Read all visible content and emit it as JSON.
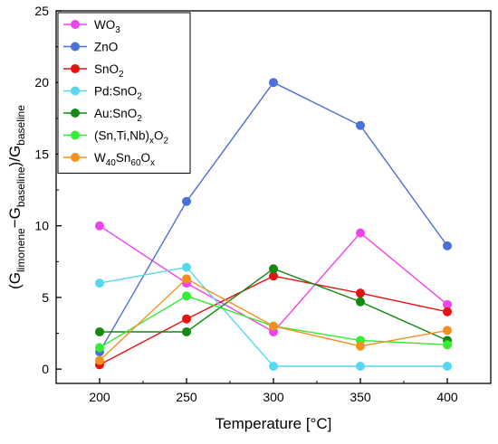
{
  "chart_data": {
    "type": "line",
    "xlabel": "Temperature [°C]",
    "ylabel_parts": {
      "open": "(G",
      "sub1": "limonene",
      "minus": "−G",
      "sub2": "baseline",
      "close": ")/G",
      "sub3": "baseline"
    },
    "x": [
      200,
      250,
      300,
      350,
      400
    ],
    "xlim": [
      175,
      425
    ],
    "ylim": [
      -1,
      25
    ],
    "xticks": [
      200,
      250,
      300,
      350,
      400
    ],
    "yticks": [
      0,
      5,
      10,
      15,
      20,
      25
    ],
    "grid": false,
    "legend_position": "top-left",
    "series": [
      {
        "name": "WO3",
        "label_parts": [
          {
            "t": "WO"
          },
          {
            "t": "3",
            "sub": true
          }
        ],
        "color": "#ee44ee",
        "values": [
          10.0,
          6.0,
          2.6,
          9.5,
          4.5
        ]
      },
      {
        "name": "ZnO",
        "label_parts": [
          {
            "t": "ZnO"
          }
        ],
        "color": "#4a70d9",
        "values": [
          1.2,
          11.7,
          20.0,
          17.0,
          8.6
        ]
      },
      {
        "name": "SnO2",
        "label_parts": [
          {
            "t": "SnO"
          },
          {
            "t": "2",
            "sub": true
          }
        ],
        "color": "#e81010",
        "values": [
          0.3,
          3.5,
          6.5,
          5.3,
          4.0
        ]
      },
      {
        "name": "Pd:SnO2",
        "label_parts": [
          {
            "t": "Pd:SnO"
          },
          {
            "t": "2",
            "sub": true
          }
        ],
        "color": "#55d8f0",
        "values": [
          6.0,
          7.1,
          0.2,
          0.2,
          0.2
        ]
      },
      {
        "name": "Au:SnO2",
        "label_parts": [
          {
            "t": "Au:SnO"
          },
          {
            "t": "2",
            "sub": true
          }
        ],
        "color": "#128a12",
        "values": [
          2.6,
          2.6,
          7.0,
          4.7,
          2.0
        ]
      },
      {
        "name": "(Sn,Ti,Nb)xO2",
        "label_parts": [
          {
            "t": "(Sn,Ti,Nb)"
          },
          {
            "t": "x",
            "sub": true
          },
          {
            "t": "O"
          },
          {
            "t": "2",
            "sub": true
          }
        ],
        "color": "#33ee33",
        "values": [
          1.5,
          5.1,
          3.0,
          2.0,
          1.7
        ]
      },
      {
        "name": "W40Sn60Ox",
        "label_parts": [
          {
            "t": "W"
          },
          {
            "t": "40",
            "sub": true
          },
          {
            "t": "Sn"
          },
          {
            "t": "60",
            "sub": true
          },
          {
            "t": "O"
          },
          {
            "t": "x",
            "sub": true
          }
        ],
        "color": "#f5901e",
        "values": [
          0.6,
          6.3,
          3.0,
          1.6,
          2.7
        ]
      }
    ]
  }
}
